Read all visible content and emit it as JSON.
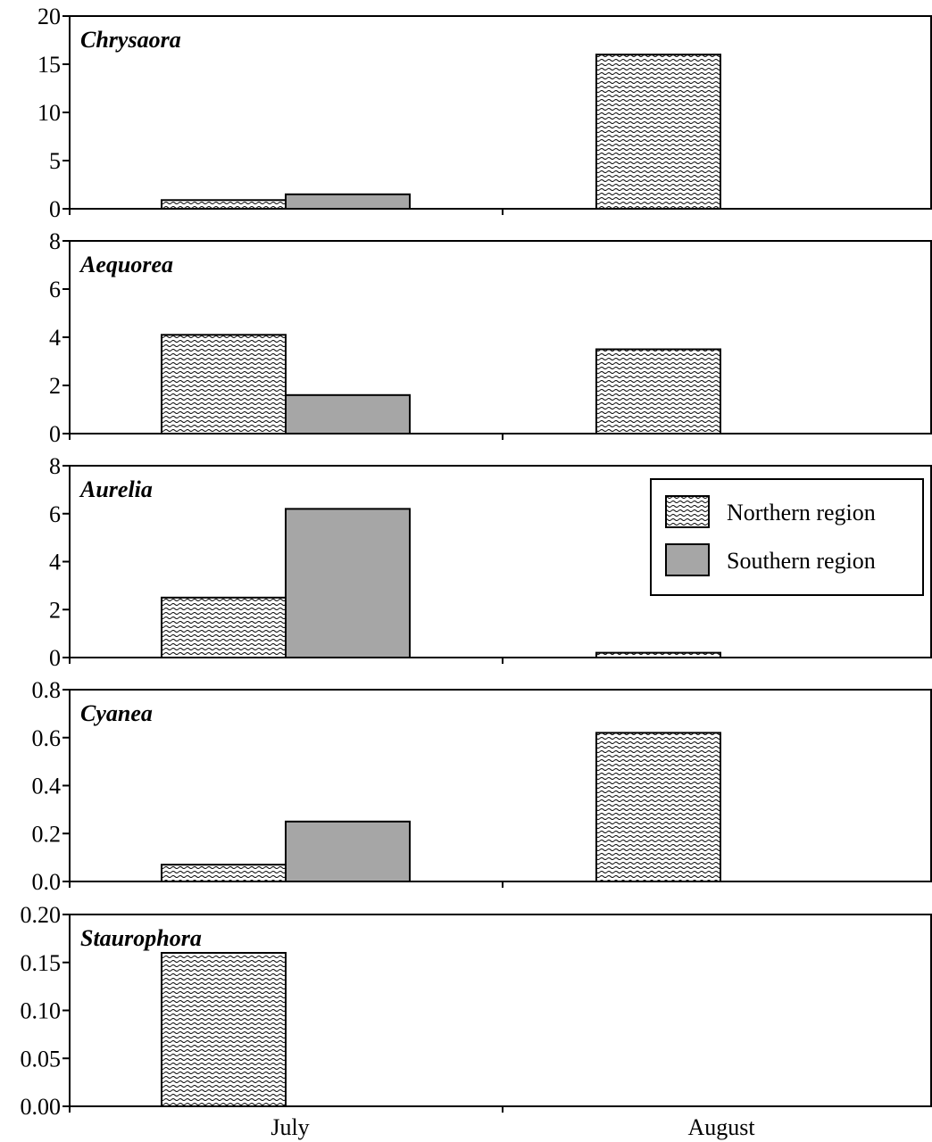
{
  "chart_data": {
    "type": "bar",
    "categories": [
      "July",
      "August"
    ],
    "legend": {
      "placement": "right",
      "entries": [
        {
          "name": "Northern region",
          "pattern": "wavy-hatch"
        },
        {
          "name": "Southern region",
          "color": "#a6a6a6"
        }
      ]
    },
    "series_colors": {
      "northern": "#ffffff",
      "southern": "#a6a6a6",
      "stroke": "#000000"
    },
    "panels": [
      {
        "title": "Chrysaora",
        "ylim": [
          0,
          20
        ],
        "yticks": [
          "0",
          "5",
          "10",
          "15",
          "20"
        ],
        "series": [
          {
            "name": "Northern region",
            "values": [
              0.9,
              16.0
            ]
          },
          {
            "name": "Southern region",
            "values": [
              1.5,
              0
            ]
          }
        ]
      },
      {
        "title": "Aequorea",
        "ylim": [
          0,
          8
        ],
        "yticks": [
          "0",
          "2",
          "4",
          "6",
          "8"
        ],
        "series": [
          {
            "name": "Northern region",
            "values": [
              4.1,
              3.5
            ]
          },
          {
            "name": "Southern region",
            "values": [
              1.6,
              0
            ]
          }
        ]
      },
      {
        "title": "Aurelia",
        "ylim": [
          0,
          8
        ],
        "yticks": [
          "0",
          "2",
          "4",
          "6",
          "8"
        ],
        "legend_here": true,
        "series": [
          {
            "name": "Northern region",
            "values": [
              2.5,
              0.2
            ]
          },
          {
            "name": "Southern region",
            "values": [
              6.2,
              0
            ]
          }
        ]
      },
      {
        "title": "Cyanea",
        "ylim": [
          0,
          0.8
        ],
        "yticks": [
          "0.0",
          "0.2",
          "0.4",
          "0.6",
          "0.8"
        ],
        "series": [
          {
            "name": "Northern region",
            "values": [
              0.07,
              0.62
            ]
          },
          {
            "name": "Southern region",
            "values": [
              0.25,
              0
            ]
          }
        ]
      },
      {
        "title": "Staurophora",
        "ylim": [
          0,
          0.2
        ],
        "yticks": [
          "0.00",
          "0.05",
          "0.10",
          "0.15",
          "0.20"
        ],
        "series": [
          {
            "name": "Northern region",
            "values": [
              0.16,
              0
            ]
          },
          {
            "name": "Southern region",
            "values": [
              0,
              0
            ]
          }
        ]
      }
    ]
  }
}
